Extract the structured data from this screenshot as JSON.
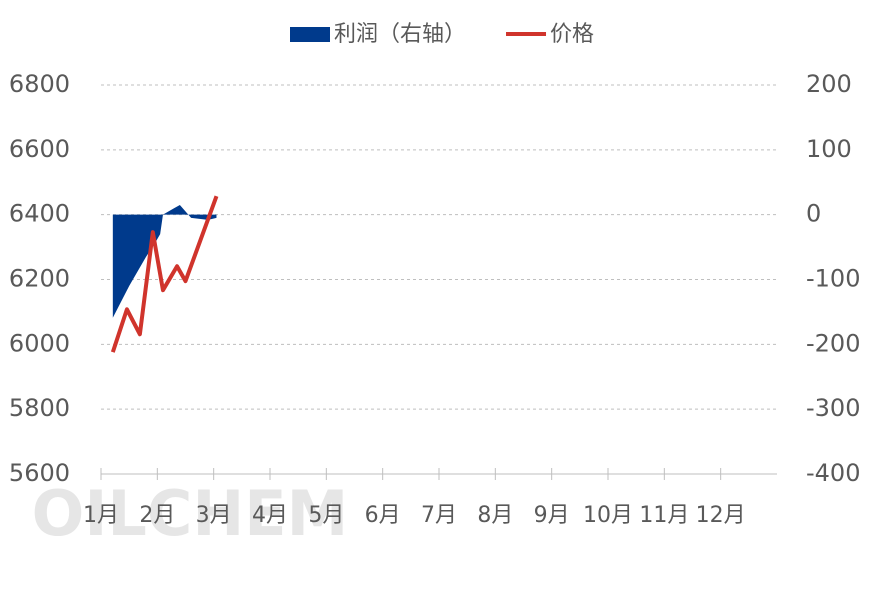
{
  "chart_data": {
    "type": "line",
    "watermark": "OILCHEM",
    "xlim": [
      1,
      13
    ],
    "xticks": [
      {
        "value": 1,
        "label": "1月"
      },
      {
        "value": 2,
        "label": "2月"
      },
      {
        "value": 3,
        "label": "3月"
      },
      {
        "value": 4,
        "label": "4月"
      },
      {
        "value": 5,
        "label": "5月"
      },
      {
        "value": 6,
        "label": "6月"
      },
      {
        "value": 7,
        "label": "7月"
      },
      {
        "value": 8,
        "label": "8月"
      },
      {
        "value": 9,
        "label": "9月"
      },
      {
        "value": 10,
        "label": "10月"
      },
      {
        "value": 11,
        "label": "11月"
      },
      {
        "value": 12,
        "label": "12月"
      }
    ],
    "ylim": [
      5600,
      6800
    ],
    "yticks": [
      5600,
      5800,
      6000,
      6200,
      6400,
      6600,
      6800
    ],
    "y2lim": [
      -400,
      200
    ],
    "y2ticks": [
      -400,
      -300,
      -200,
      -100,
      0,
      100,
      200
    ],
    "grid": true,
    "legend": "top",
    "series": [
      {
        "name": "利润（右轴）",
        "type": "area",
        "axis": "y2",
        "color": "#003a8c",
        "x": [
          1.21,
          1.5,
          1.8,
          1.95,
          2.05,
          2.1,
          2.3,
          2.4,
          2.6,
          2.9,
          3.05
        ],
        "values": [
          -159,
          -110,
          -65,
          -45,
          -30,
          0,
          10,
          15,
          -5,
          -8,
          -5
        ]
      },
      {
        "name": "价格",
        "type": "line",
        "color": "#d0342c",
        "x": [
          1.21,
          1.46,
          1.69,
          1.92,
          2.1,
          2.35,
          2.5,
          3.05
        ],
        "values": [
          5976,
          6108,
          6031,
          6346,
          6167,
          6241,
          6195,
          6457
        ]
      }
    ]
  }
}
